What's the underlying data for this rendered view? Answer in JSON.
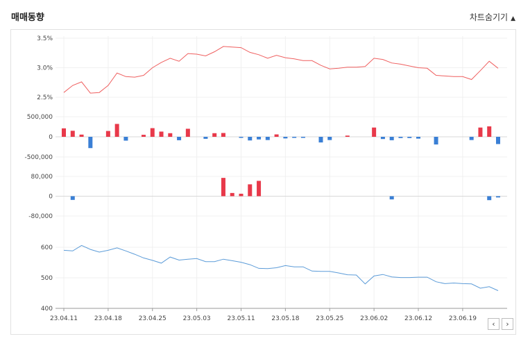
{
  "page": {
    "title": "매매동향",
    "toggle_label": "차트숨기기",
    "toggle_icon": "caret-up-icon"
  },
  "nav": {
    "prev_icon": "chevron-left-icon",
    "prev_symbol": "‹",
    "next_icon": "chevron-right-icon",
    "next_symbol": "›"
  },
  "chart_data": {
    "type": "line",
    "x_labels": [
      "23.04.11",
      "23.04.18",
      "23.04.25",
      "23.05.03",
      "23.05.11",
      "23.05.18",
      "23.05.25",
      "23.06.02",
      "23.06.12",
      "23.06.19"
    ],
    "x_label_index": [
      0,
      5,
      10,
      15,
      20,
      25,
      30,
      35,
      40,
      45
    ],
    "grid": true,
    "panels": [
      {
        "name": "ratio",
        "type": "line",
        "color": "#ef5f5f",
        "ylim": [
          2.0,
          3.5
        ],
        "ticks": [
          {
            "v": 3.5,
            "label": "3.5%"
          },
          {
            "v": 3.0,
            "label": "3.0%"
          },
          {
            "v": 2.5,
            "label": "2.5%"
          }
        ],
        "values": [
          2.58,
          2.7,
          2.76,
          2.57,
          2.58,
          2.7,
          2.91,
          2.85,
          2.84,
          2.87,
          3.0,
          3.09,
          3.16,
          3.11,
          3.24,
          3.23,
          3.2,
          3.27,
          3.36,
          3.35,
          3.34,
          3.26,
          3.22,
          3.16,
          3.21,
          3.17,
          3.15,
          3.12,
          3.12,
          3.04,
          2.98,
          2.99,
          3.01,
          3.01,
          3.02,
          3.16,
          3.14,
          3.08,
          3.06,
          3.03,
          3.0,
          2.99,
          2.87,
          2.86,
          2.85,
          2.85,
          2.8,
          2.95,
          3.11,
          2.99
        ]
      },
      {
        "name": "foreign",
        "type": "bar",
        "up_color": "#e8394a",
        "down_color": "#3a7fd5",
        "ylim": [
          -600000,
          600000
        ],
        "ticks": [
          {
            "v": 500000,
            "label": "500,000"
          },
          {
            "v": 0,
            "label": "0"
          },
          {
            "v": -500000,
            "label": "-500,000"
          }
        ],
        "values": [
          210000,
          150000,
          55000,
          -280000,
          0,
          145000,
          320000,
          -95000,
          0,
          50000,
          215000,
          130000,
          90000,
          -85000,
          200000,
          0,
          -50000,
          90000,
          95000,
          0,
          -15000,
          -90000,
          -65000,
          -80000,
          60000,
          -40000,
          -20000,
          -25000,
          0,
          -140000,
          -80000,
          0,
          30000,
          0,
          0,
          230000,
          -55000,
          -85000,
          -30000,
          -30000,
          -45000,
          0,
          -190000,
          0,
          0,
          0,
          -80000,
          230000,
          260000,
          -180000
        ]
      },
      {
        "name": "institution",
        "type": "bar",
        "up_color": "#e8394a",
        "down_color": "#3a7fd5",
        "ylim": [
          -110000,
          110000
        ],
        "ticks": [
          {
            "v": 80000,
            "label": "80,000"
          },
          {
            "v": 0,
            "label": "0"
          },
          {
            "v": -80000,
            "label": "-80,000"
          }
        ],
        "values": [
          0,
          -15000,
          0,
          0,
          0,
          0,
          0,
          0,
          0,
          0,
          0,
          0,
          0,
          0,
          0,
          0,
          0,
          0,
          74000,
          13000,
          10000,
          48000,
          62000,
          0,
          0,
          0,
          0,
          0,
          0,
          0,
          0,
          0,
          0,
          0,
          0,
          0,
          0,
          -13000,
          0,
          0,
          0,
          0,
          0,
          0,
          0,
          0,
          0,
          0,
          -16000,
          -5000
        ]
      },
      {
        "name": "price",
        "type": "line",
        "color": "#5b9bd8",
        "ylim": [
          400,
          650
        ],
        "ticks": [
          {
            "v": 600,
            "label": "600"
          },
          {
            "v": 500,
            "label": "500"
          },
          {
            "v": 400,
            "label": "400"
          }
        ],
        "values": [
          590,
          588,
          606,
          593,
          584,
          590,
          598,
          588,
          577,
          565,
          557,
          548,
          568,
          558,
          561,
          563,
          553,
          553,
          561,
          556,
          551,
          543,
          531,
          530,
          533,
          540,
          536,
          536,
          522,
          521,
          521,
          516,
          510,
          509,
          480,
          506,
          511,
          503,
          501,
          501,
          502,
          502,
          487,
          481,
          483,
          481,
          480,
          466,
          471,
          458
        ]
      }
    ]
  }
}
